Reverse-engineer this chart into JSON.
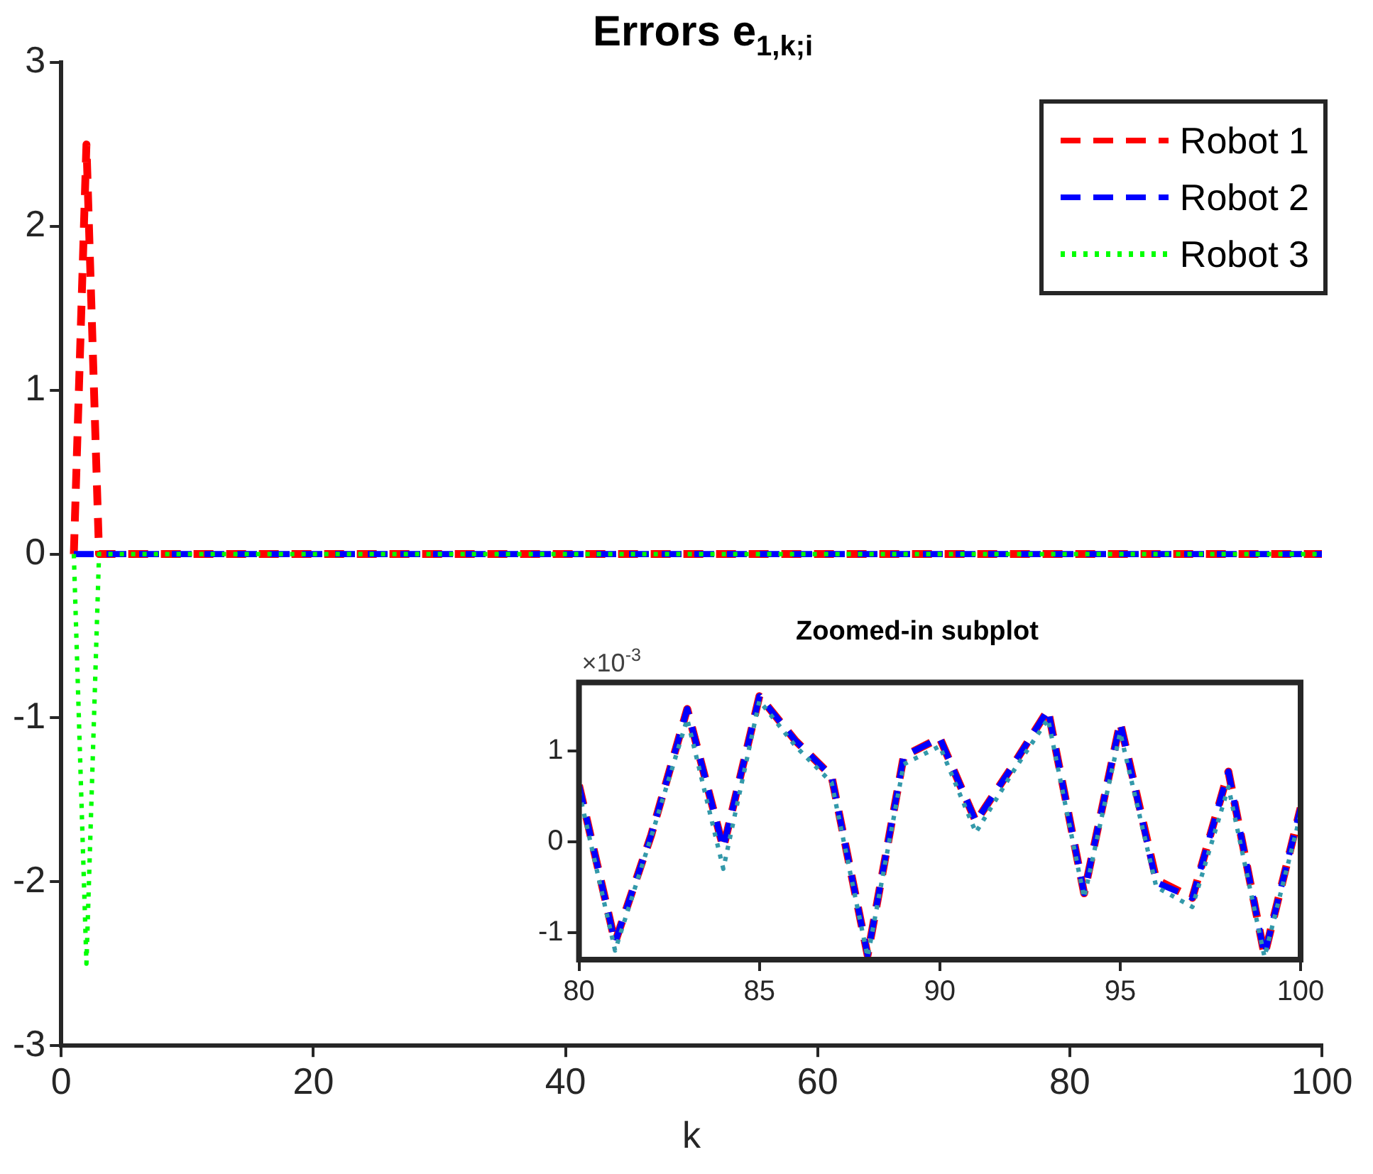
{
  "chart_data": [
    {
      "type": "line",
      "title": "Errors e$_{1,k;i}$",
      "xlabel": "k",
      "xlim": [
        0,
        100
      ],
      "xticks": [
        0,
        20,
        40,
        60,
        80,
        100
      ],
      "ylim": [
        -3,
        3
      ],
      "yticks": [
        -3,
        -2,
        -1,
        0,
        1,
        2,
        3
      ],
      "legend": "top right",
      "marker": "none",
      "series": [
        {
          "name": "Robot 1",
          "color": "#ff0000",
          "line_style": "dashed",
          "x": [
            1,
            2,
            3,
            100
          ],
          "values": [
            0,
            2.5,
            0,
            0
          ]
        },
        {
          "name": "Robot 2",
          "color": "#0000ff",
          "line_style": "dashed",
          "x": [
            1,
            100
          ],
          "values": [
            0,
            0
          ]
        },
        {
          "name": "Robot 3",
          "color": "#00ff00",
          "line_style": "dotted",
          "x": [
            1,
            2,
            3,
            100
          ],
          "values": [
            0,
            -2.5,
            0,
            0
          ]
        }
      ]
    },
    {
      "type": "line",
      "title": "Zoomed-in subplot",
      "xlim": [
        80,
        100
      ],
      "xticks": [
        80,
        85,
        90,
        95,
        100
      ],
      "ylim": [
        -1.3,
        1.75
      ],
      "yticks": [
        -1,
        0,
        1
      ],
      "marker": "none",
      "annotations": [
        "×10$^{-3}$"
      ],
      "x": [
        80,
        81,
        82,
        83,
        84,
        85,
        86,
        87,
        88,
        89,
        90,
        91,
        92,
        93,
        94,
        95,
        96,
        97,
        98,
        99,
        100
      ],
      "series": [
        {
          "color": "#ff0000",
          "line_style": "dashed",
          "values": [
            0.62,
            -1.11,
            0.07,
            1.46,
            -0.07,
            1.6,
            1.11,
            0.72,
            -1.25,
            0.94,
            1.14,
            0.22,
            0.82,
            1.45,
            -0.57,
            1.31,
            -0.42,
            -0.62,
            0.77,
            -1.25,
            0.37
          ]
        },
        {
          "color": "#0000ff",
          "line_style": "dashed",
          "values": [
            0.62,
            -1.11,
            0.07,
            1.46,
            -0.07,
            1.6,
            1.11,
            0.72,
            -1.25,
            0.94,
            1.14,
            0.22,
            0.82,
            1.45,
            -0.57,
            1.31,
            -0.45,
            -0.62,
            0.77,
            -1.25,
            0.37
          ]
        },
        {
          "color": "#3399aa",
          "line_style": "dotted",
          "values": [
            0.55,
            -1.2,
            0.05,
            1.35,
            -0.3,
            1.55,
            1.05,
            0.65,
            -1.27,
            0.85,
            1.05,
            0.1,
            0.75,
            1.35,
            -0.62,
            1.2,
            -0.5,
            -0.72,
            0.6,
            -1.27,
            0.3
          ]
        }
      ]
    }
  ]
}
